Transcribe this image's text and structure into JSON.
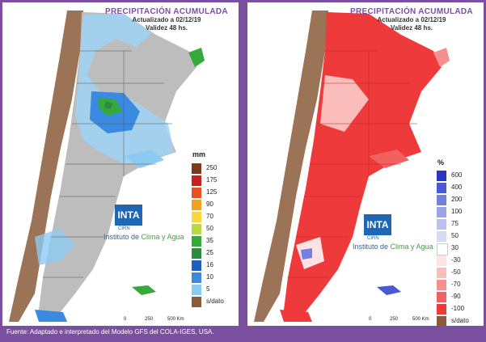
{
  "left_panel": {
    "title": "PRECIPITACIÓN ACUMULADA",
    "updated": "Actualizado a 02/12/19",
    "validity": "Validez 48 hs.",
    "unit": "mm",
    "legend": [
      {
        "label": "250",
        "color": "#7a3b1a"
      },
      {
        "label": "175",
        "color": "#c8201c"
      },
      {
        "label": "125",
        "color": "#e8501d"
      },
      {
        "label": "90",
        "color": "#f3a21c"
      },
      {
        "label": "70",
        "color": "#f8d83a"
      },
      {
        "label": "50",
        "color": "#b8da3e"
      },
      {
        "label": "35",
        "color": "#35a939"
      },
      {
        "label": "25",
        "color": "#2e8a3e"
      },
      {
        "label": "16",
        "color": "#1f5fbf"
      },
      {
        "label": "10",
        "color": "#3a8be0"
      },
      {
        "label": "5",
        "color": "#8ccaf2"
      },
      {
        "label": "s/dato",
        "color": "#8a5a3a"
      }
    ],
    "logo_text": "INTA",
    "cirn_text": "CIRN",
    "institute": "Instituto de",
    "institute_highlight": "Clima y Agua",
    "scale_0": "0",
    "scale_250": "250",
    "scale_500": "500 Km"
  },
  "right_panel": {
    "title": "PRECIPITACIÓN ACUMULADA",
    "updated": "Actualizado a 02/12/19",
    "validity": "Validez 48 hs.",
    "unit": "%",
    "legend": [
      {
        "label": "600",
        "color": "#2a35c8"
      },
      {
        "label": "400",
        "color": "#4b58d6"
      },
      {
        "label": "200",
        "color": "#7480e0"
      },
      {
        "label": "100",
        "color": "#9ca4e8"
      },
      {
        "label": "75",
        "color": "#bcc1ef"
      },
      {
        "label": "50",
        "color": "#d7daf5"
      },
      {
        "label": "30",
        "color": "#ffffff"
      },
      {
        "label": "-30",
        "color": "#fde3e3"
      },
      {
        "label": "-50",
        "color": "#fbbcbc"
      },
      {
        "label": "-70",
        "color": "#f78f8f"
      },
      {
        "label": "-90",
        "color": "#f36060"
      },
      {
        "label": "-100",
        "color": "#ee3a3a"
      },
      {
        "label": "s/dato",
        "color": "#8a5a3a"
      }
    ],
    "logo_text": "INTA",
    "cirn_text": "CIRN",
    "institute": "Instituto de",
    "institute_highlight": "Clima y Agua",
    "scale_0": "0",
    "scale_250": "250",
    "scale_500": "500 Km"
  },
  "footer": "Fuente: Adaptado e interpretado del Modelo GFS del COLA-IGES, USA."
}
